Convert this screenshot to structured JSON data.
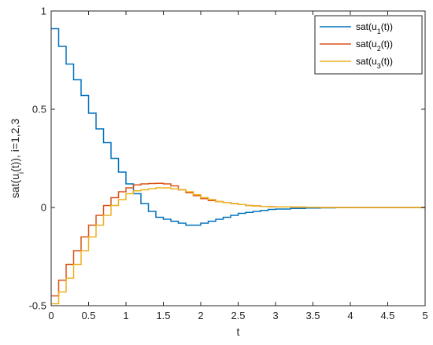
{
  "chart_data": {
    "type": "line",
    "step": true,
    "xlabel": "t",
    "ylabel": "sat(u_i(t)), i=1,2,3",
    "xlim": [
      0,
      5
    ],
    "ylim": [
      -0.5,
      1
    ],
    "xticks": [
      "0",
      "0.5",
      "1",
      "1.5",
      "2",
      "2.5",
      "3",
      "3.5",
      "4",
      "4.5",
      "5"
    ],
    "yticks": [
      "-0.5",
      "0",
      "0.5",
      "1"
    ],
    "grid": false,
    "legend_position": "top-right",
    "series": [
      {
        "name": "sat(u_1(t))",
        "name_main": "sat(u",
        "name_sub": "1",
        "name_tail": "(t))",
        "color": "#0072BD",
        "x": [
          0,
          0.1,
          0.2,
          0.3,
          0.4,
          0.5,
          0.6,
          0.7,
          0.8,
          0.9,
          1.0,
          1.1,
          1.2,
          1.3,
          1.4,
          1.5,
          1.6,
          1.7,
          1.8,
          1.9,
          2.0,
          2.1,
          2.2,
          2.3,
          2.4,
          2.5,
          2.6,
          2.7,
          2.8,
          2.9,
          3.0,
          3.2,
          3.4,
          3.6,
          3.8,
          4.0,
          4.5,
          5.0
        ],
        "y": [
          0.91,
          0.82,
          0.73,
          0.65,
          0.57,
          0.48,
          0.4,
          0.33,
          0.25,
          0.18,
          0.12,
          0.07,
          0.02,
          -0.02,
          -0.05,
          -0.06,
          -0.07,
          -0.08,
          -0.09,
          -0.09,
          -0.08,
          -0.07,
          -0.06,
          -0.05,
          -0.04,
          -0.03,
          -0.025,
          -0.02,
          -0.015,
          -0.01,
          -0.008,
          -0.005,
          -0.003,
          -0.002,
          -0.001,
          0.0,
          0.0,
          0.0
        ]
      },
      {
        "name": "sat(u_2(t))",
        "name_main": "sat(u",
        "name_sub": "2",
        "name_tail": "(t))",
        "color": "#D95319",
        "x": [
          0,
          0.1,
          0.2,
          0.3,
          0.4,
          0.5,
          0.6,
          0.7,
          0.8,
          0.9,
          1.0,
          1.1,
          1.2,
          1.3,
          1.4,
          1.5,
          1.6,
          1.7,
          1.8,
          1.9,
          2.0,
          2.1,
          2.2,
          2.3,
          2.4,
          2.5,
          2.6,
          2.7,
          2.8,
          2.9,
          3.0,
          3.2,
          3.4,
          3.6,
          3.8,
          4.0,
          4.5,
          5.0
        ],
        "y": [
          -0.45,
          -0.37,
          -0.29,
          -0.22,
          -0.15,
          -0.09,
          -0.04,
          0.01,
          0.05,
          0.08,
          0.1,
          0.115,
          0.12,
          0.122,
          0.123,
          0.12,
          0.11,
          0.09,
          0.075,
          0.06,
          0.045,
          0.035,
          0.03,
          0.025,
          0.02,
          0.015,
          0.01,
          0.008,
          0.005,
          0.004,
          0.003,
          0.002,
          0.001,
          0.0,
          0.0,
          0.0,
          0.0,
          0.0
        ]
      },
      {
        "name": "sat(u_3(t))",
        "name_main": "sat(u",
        "name_sub": "3",
        "name_tail": "(t))",
        "color": "#EDB120",
        "x": [
          0,
          0.1,
          0.2,
          0.3,
          0.4,
          0.5,
          0.6,
          0.7,
          0.8,
          0.9,
          1.0,
          1.1,
          1.2,
          1.3,
          1.4,
          1.5,
          1.6,
          1.7,
          1.8,
          1.9,
          2.0,
          2.1,
          2.2,
          2.3,
          2.4,
          2.5,
          2.6,
          2.7,
          2.8,
          2.9,
          3.0,
          3.2,
          3.4,
          3.6,
          3.8,
          4.0,
          4.5,
          5.0
        ],
        "y": [
          -0.49,
          -0.43,
          -0.36,
          -0.29,
          -0.22,
          -0.15,
          -0.09,
          -0.04,
          0.01,
          0.04,
          0.07,
          0.085,
          0.09,
          0.095,
          0.1,
          0.1,
          0.095,
          0.09,
          0.08,
          0.065,
          0.05,
          0.04,
          0.03,
          0.025,
          0.02,
          0.015,
          0.01,
          0.008,
          0.005,
          0.004,
          0.003,
          0.002,
          0.001,
          0.0,
          0.0,
          0.0,
          0.0,
          0.0
        ]
      }
    ]
  }
}
